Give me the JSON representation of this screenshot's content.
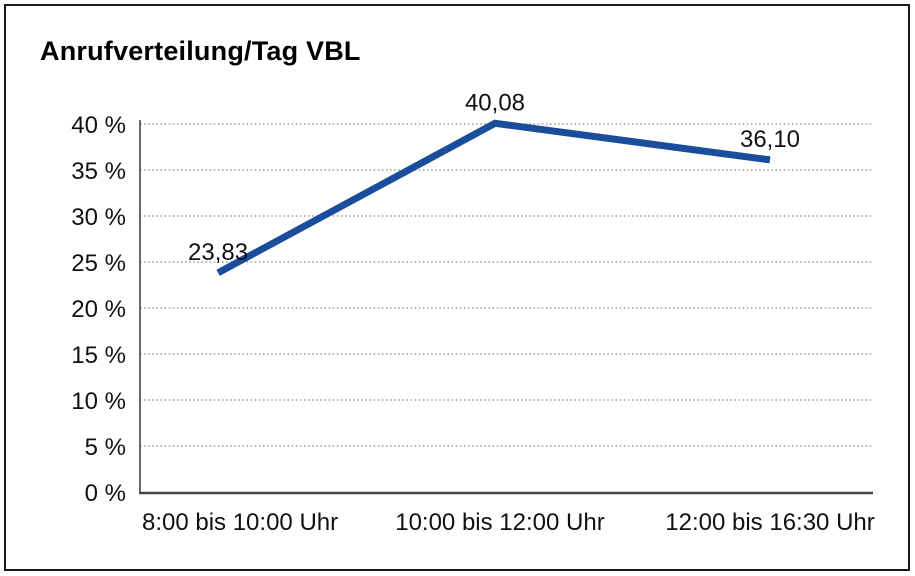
{
  "chart_data": {
    "type": "line",
    "title": "Anrufverteilung/Tag VBL",
    "categories": [
      "8:00 bis 10:00 Uhr",
      "10:00 bis 12:00 Uhr",
      "12:00 bis 16:30 Uhr"
    ],
    "values": [
      23.83,
      40.08,
      36.1
    ],
    "value_labels": [
      "23,83",
      "40,08",
      "36,10"
    ],
    "y_ticks": [
      {
        "value": 0,
        "label": "0 %"
      },
      {
        "value": 5,
        "label": "5 %"
      },
      {
        "value": 10,
        "label": "10 %"
      },
      {
        "value": 15,
        "label": "15 %"
      },
      {
        "value": 20,
        "label": "20 %"
      },
      {
        "value": 25,
        "label": "25 %"
      },
      {
        "value": 30,
        "label": "30 %"
      },
      {
        "value": 35,
        "label": "35 %"
      },
      {
        "value": 40,
        "label": "40 %"
      }
    ],
    "ylim": [
      0,
      40
    ],
    "xlabel": "",
    "ylabel": "",
    "legend": "none",
    "grid": "horizontal-dotted",
    "line_color": "#1a4e9a",
    "grid_color": "#888888",
    "axis_color": "#444444",
    "text_color": "#111111"
  }
}
